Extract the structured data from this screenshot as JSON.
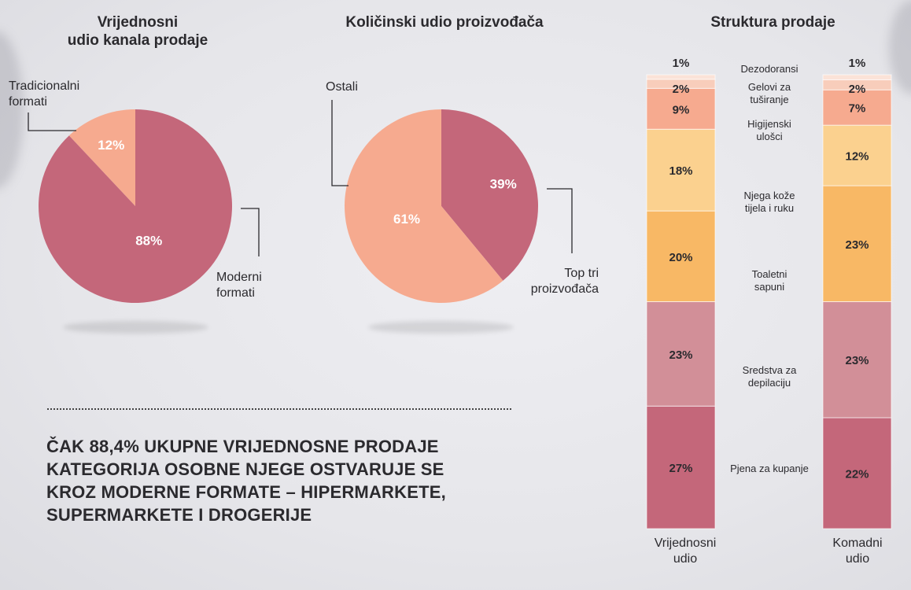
{
  "colors": {
    "rose": "#c4677a",
    "salmon": "#f6aa8f",
    "peach": "#f8cdbb",
    "light_peach": "#fbe3d8",
    "apricot": "#fbd18f",
    "orange": "#f8b865",
    "pink": "#d28f98",
    "text": "#2b2a2e"
  },
  "chart_data": [
    {
      "type": "pie",
      "title": "Vrijednosni udio kanala prodaje",
      "slices": [
        {
          "label": "Moderni formati",
          "value": 88,
          "display": "88%",
          "color": "#c4677a"
        },
        {
          "label": "Tradicionalni formati",
          "value": 12,
          "display": "12%",
          "color": "#f6aa8f"
        }
      ]
    },
    {
      "type": "pie",
      "title": "Količinski udio proizvođača",
      "slices": [
        {
          "label": "Top tri proizvođača",
          "value": 39,
          "display": "39%",
          "color": "#c4677a"
        },
        {
          "label": "Ostali",
          "value": 61,
          "display": "61%",
          "color": "#f6aa8f"
        }
      ]
    },
    {
      "type": "bar",
      "stacked": true,
      "title": "Struktura prodaje",
      "categories": [
        "Vrijednosni udio",
        "Komadni udio"
      ],
      "series": [
        {
          "name": "Dezodoransi",
          "values": [
            27,
            22
          ],
          "display": [
            "27%",
            "22%"
          ],
          "color": "#c4677a"
        },
        {
          "name": "Gelovi za tuširanje",
          "values": [
            23,
            23
          ],
          "display": [
            "23%",
            "23%"
          ],
          "color": "#d28f98"
        },
        {
          "name": "Higijenski ulošci",
          "values": [
            20,
            23
          ],
          "display": [
            "20%",
            "23%"
          ],
          "color": "#f8b865"
        },
        {
          "name": "Njega kože tijela i ruku",
          "values": [
            18,
            12
          ],
          "display": [
            "18%",
            "12%"
          ],
          "color": "#fbd18f"
        },
        {
          "name": "Toaletni sapuni",
          "values": [
            9,
            7
          ],
          "display": [
            "9%",
            "7%"
          ],
          "color": "#f6aa8f"
        },
        {
          "name": "Sredstva za depilaciju",
          "values": [
            2,
            2
          ],
          "display": [
            "2%",
            "2%"
          ],
          "color": "#f8cdbb"
        },
        {
          "name": "Pjena za kupanje",
          "values": [
            1,
            1
          ],
          "display": [
            "1%",
            "1%"
          ],
          "color": "#fbe3d8"
        }
      ]
    }
  ],
  "pie1": {
    "title_line1": "Vrijednosni",
    "title_line2": "udio kanala prodaje",
    "label_small_line1": "Tradicionalni",
    "label_small_line2": "formati",
    "label_large_line1": "Moderni",
    "label_large_line2": "formati"
  },
  "pie2": {
    "title": "Količinski udio proizvođača",
    "label_small": "Ostali",
    "label_large_line1": "Top tri",
    "label_large_line2": "proizvođača"
  },
  "stack": {
    "title": "Struktura prodaje",
    "cat1_line1": "Vrijednosni",
    "cat1_line2": "udio",
    "cat2_line1": "Komadni",
    "cat2_line2": "udio",
    "mid_labels": [
      {
        "line1": "Pjena za kupanje",
        "line2": ""
      },
      {
        "line1": "Sredstva za",
        "line2": "depilaciju"
      },
      {
        "line1": "Toaletni",
        "line2": "sapuni"
      },
      {
        "line1": "Njega kože",
        "line2": "tijela i ruku"
      },
      {
        "line1": "Higijenski",
        "line2": "ulošci"
      },
      {
        "line1": "Gelovi za",
        "line2": "tuširanje"
      },
      {
        "line1": "Dezodoransi",
        "line2": ""
      }
    ]
  },
  "headline": {
    "line1": "ČAK 88,4% UKUPNE VRIJEDNOSNE PRODAJE",
    "line2": "KATEGORIJA OSOBNE NJEGE OSTVARUJE SE",
    "line3": "KROZ MODERNE FORMATE – HIPERMARKETE,",
    "line4": "SUPERMARKETE I DROGERIJE"
  }
}
